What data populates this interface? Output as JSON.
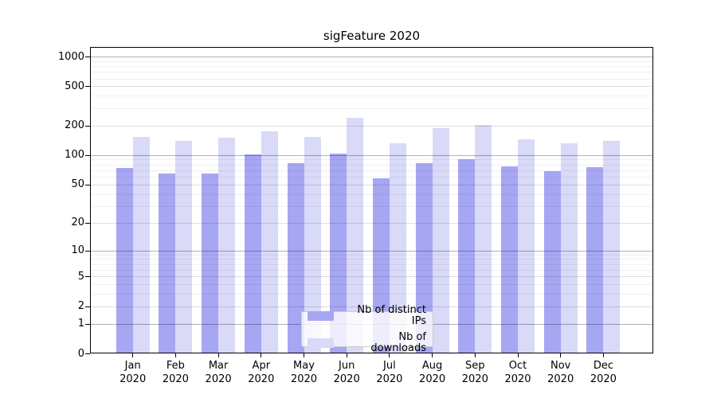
{
  "title": "sigFeature 2020",
  "chart_data": {
    "type": "bar",
    "title": "sigFeature 2020",
    "categories": [
      "Jan",
      "Feb",
      "Mar",
      "Apr",
      "May",
      "Jun",
      "Jul",
      "Aug",
      "Sep",
      "Oct",
      "Nov",
      "Dec"
    ],
    "x_year_label": "2020",
    "series": [
      {
        "name": "Nb of distinct IPs",
        "color": "#a6a6f3",
        "values": [
          74,
          65,
          65,
          101,
          82,
          104,
          58,
          82,
          90,
          77,
          68,
          75
        ]
      },
      {
        "name": "Nb of downloads",
        "color": "#d9d9f8",
        "values": [
          153,
          139,
          151,
          174,
          153,
          240,
          133,
          187,
          202,
          144,
          131,
          140
        ]
      }
    ],
    "yscale": "log1p",
    "y_ticks": [
      0,
      1,
      2,
      5,
      10,
      20,
      50,
      100,
      200,
      500,
      1000
    ],
    "y_minor_ticks": [
      3,
      4,
      6,
      7,
      8,
      9,
      30,
      40,
      60,
      70,
      80,
      90,
      300,
      400,
      600,
      700,
      800,
      900
    ],
    "ylim": [
      0,
      1300
    ],
    "grid": true,
    "legend_position": "lower center"
  }
}
